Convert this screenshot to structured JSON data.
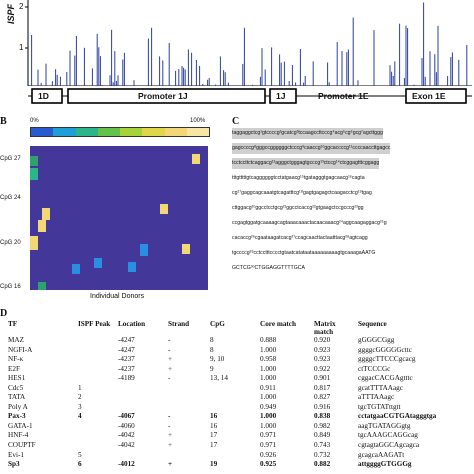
{
  "panelA": {
    "ylabel": "ISPF",
    "yticks": [
      "2",
      "1"
    ],
    "segments": [
      {
        "label": "1D",
        "boxed": true
      },
      {
        "label": "Promoter 1J",
        "boxed": true
      },
      {
        "label": "1J",
        "boxed": true
      },
      {
        "label": "Promoter 1E",
        "boxed": false
      },
      {
        "label": "Exon 1E",
        "boxed": true
      }
    ]
  },
  "panelB": {
    "letter": "B",
    "scale_left": "0%",
    "scale_right": "100%",
    "cpg_labels": [
      "CpG 27",
      "CpG 24",
      "CpG 20",
      "CpG 16"
    ],
    "xlabel": "Individual Donors",
    "colors": {
      "background": "#44379a",
      "scale": [
        "#2a5ad0",
        "#1f9fd8",
        "#2bb58a",
        "#64c24a",
        "#a6d33a",
        "#dfd64a",
        "#f3d777",
        "#f9e4a8"
      ]
    },
    "heatmap_cells": [
      {
        "color": "#2ea26e"
      },
      {
        "color": "#f3d777"
      },
      {
        "color": "#2bb58a"
      },
      {
        "color": "#f3d777"
      },
      {
        "color": "#f3d777"
      },
      {
        "color": "#f3d777"
      },
      {
        "color": "#f3d777"
      },
      {
        "color": "#2a8fe0"
      },
      {
        "color": "#2a8fe0"
      },
      {
        "color": "#2a8fe0"
      },
      {
        "color": "#f3d777"
      },
      {
        "color": "#2a8fe0"
      },
      {
        "color": "#2ea26e"
      }
    ]
  },
  "panelC": {
    "letter": "C",
    "lines": [
      {
        "text": "taggaggctcg¹gtccccg²gcatcg³tccaagccttcccg⁴acg⁵cg⁶gcg⁷agcttggg",
        "hl": true
      },
      {
        "text": "gagccccg⁸gggccggggggctcccg⁹caaccg¹⁰ggcaccccg¹¹ccccaaccttgagcc",
        "hl": true
      },
      {
        "text": "tcctccttctcaggacg¹²agggctgggagtgcccg¹³ctccg¹⁴ctcggagtttcggagg",
        "hl": true
      },
      {
        "text": "tttgtttttgtcaggggggtcctatgaacg¹⁵tgatagggtgagcaacg¹⁶cagta",
        "hl": false
      },
      {
        "text": "cg¹⁷gaggcagcaaatgtcagatttcg¹⁸gagtgagagctcaagacctcg¹⁹tgag",
        "hl": false
      },
      {
        "text": "cttggacg²⁰ggcctcctgcg²¹ggcctcaccg²²gtgaagctccgcccg²³gg",
        "hl": false
      },
      {
        "text": "ccgagtggatgcaaaagcagtaaacaaactacaacaaacg²⁴aggcaagaggacg²⁵g",
        "hl": false
      },
      {
        "text": "cacaccg²⁶cgaataagatcacg²⁷ccagcaacttactaatttacg²⁸agtcagg",
        "hl": false
      },
      {
        "text": "tgccccg²⁹cctcctttcccctgtaatcatataataaaaaaaaagtgcaaagaAATG",
        "hl": false
      },
      {
        "text": "GCTCG³⁰CTGGAGGTTTTGCA",
        "hl": false
      }
    ]
  },
  "panelD": {
    "letter": "D",
    "headers": [
      "TF",
      "ISPF Peak",
      "Location",
      "Strand",
      "CpG",
      "Core match",
      "Matrix match",
      "Sequence"
    ],
    "rows": [
      {
        "tf": "MAZ",
        "peak": "",
        "loc": "-4247",
        "strand": "-",
        "cpg": "8",
        "core": "0.888",
        "matrix": "0.920",
        "seq": "gGGGCGgg",
        "bold": false
      },
      {
        "tf": "NGFI-A",
        "peak": "",
        "loc": "-4247",
        "strand": "-",
        "cpg": "8",
        "core": "1.000",
        "matrix": "0.923",
        "seq": "ggggcGGGGGcttc",
        "bold": false
      },
      {
        "tf": "NF-κ",
        "peak": "",
        "loc": "-4237",
        "strand": "+",
        "cpg": "9, 10",
        "core": "0.958",
        "matrix": "0.923",
        "seq": "ggggcTTCCCgcacg",
        "bold": false
      },
      {
        "tf": "E2F",
        "peak": "",
        "loc": "-4237",
        "strand": "+",
        "cpg": "9",
        "core": "1.000",
        "matrix": "0.922",
        "seq": "ctTCCCGc",
        "bold": false
      },
      {
        "tf": "HES1",
        "peak": "",
        "loc": "-4189",
        "strand": "-",
        "cpg": "13, 14",
        "core": "1.000",
        "matrix": "0.901",
        "seq": "cggacCACGAgtttc",
        "bold": false
      },
      {
        "tf": "Cdc5",
        "peak": "1",
        "loc": "",
        "strand": "",
        "cpg": "",
        "core": "0.911",
        "matrix": "0.817",
        "seq": "gcatTTTAAagc",
        "bold": false
      },
      {
        "tf": "TATA",
        "peak": "2",
        "loc": "",
        "strand": "",
        "cpg": "",
        "core": "1.000",
        "matrix": "0.827",
        "seq": "aTTTAAagc",
        "bold": false
      },
      {
        "tf": "Poly A",
        "peak": "3",
        "loc": "",
        "strand": "",
        "cpg": "",
        "core": "0.949",
        "matrix": "0.916",
        "seq": "tgcTGTATttgtt",
        "bold": false
      },
      {
        "tf": "Pax-3",
        "peak": "4",
        "loc": "-4067",
        "strand": "-",
        "cpg": "16",
        "core": "1.000",
        "matrix": "0.838",
        "seq": "cctatgaaCGTGAtagggtga",
        "bold": true
      },
      {
        "tf": "GATA-1",
        "peak": "",
        "loc": "-4060",
        "strand": "-",
        "cpg": "16",
        "core": "1.000",
        "matrix": "0.982",
        "seq": "aagTGATAGGgtg",
        "bold": false
      },
      {
        "tf": "HNF-4",
        "peak": "",
        "loc": "-4042",
        "strand": "+",
        "cpg": "17",
        "core": "0.971",
        "matrix": "0.849",
        "seq": "tgcAAAGCAGGcag",
        "bold": false
      },
      {
        "tf": "COUPTF",
        "peak": "",
        "loc": "-4042",
        "strand": "+",
        "cpg": "17",
        "core": "0.971",
        "matrix": "0.743",
        "seq": "cgtagtaGGCAgcagca",
        "bold": false
      },
      {
        "tf": "Evi-1",
        "peak": "5",
        "loc": "",
        "strand": "",
        "cpg": "",
        "core": "0.926",
        "matrix": "0.732",
        "seq": "gcagcaAAGATt",
        "bold": false
      },
      {
        "tf": "Sp3",
        "peak": "6",
        "loc": "-4012",
        "strand": "+",
        "cpg": "19",
        "core": "0.925",
        "matrix": "0.882",
        "seq": "attggggGTGGGg",
        "bold": true
      }
    ]
  }
}
